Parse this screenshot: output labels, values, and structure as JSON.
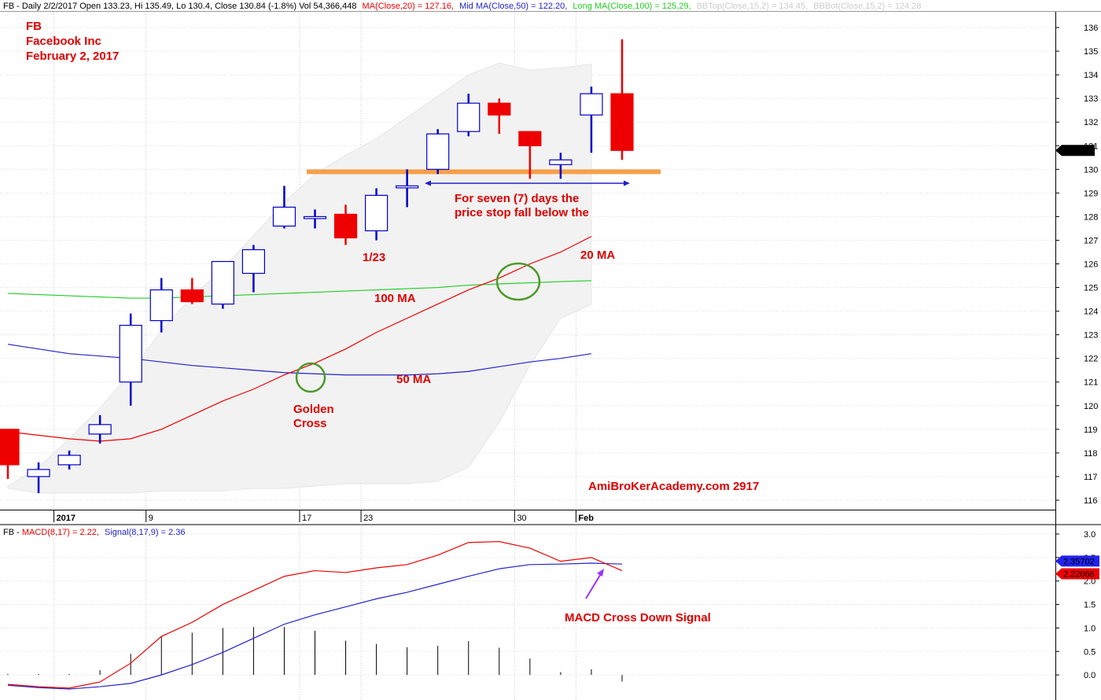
{
  "header": {
    "price_info": "FB - Daily 2/2/2017 Open 133.23, Hi 135.49, Lo 130.4, Close 130.84 (-1.8%) Vol 54,366,448",
    "ma20": "MA(Close,20) = 127.16,",
    "ma50": "Mid MA(Close,50) = 122.20,",
    "ma100": "Long MA(Close,100) = 125.29,",
    "bbtop": "BBTop(Close,15,2) = 134.45,",
    "bbbot": "BBBot(Close,15,2) = 124.28",
    "macd_prefix": "FB - ",
    "macd": "MACD(8,17) = 2.22,",
    "signal": "Signal(8,17,9) = 2.36"
  },
  "title": {
    "line1": "FB",
    "line2": "Facebook Inc",
    "line3": "February 2, 2017"
  },
  "annotations": {
    "seven_days_1": "For seven (7) days the",
    "seven_days_2": "price stop fall below the",
    "date_label": "1/23",
    "ma20_label": "20 MA",
    "ma100_label": "100 MA",
    "ma50_label": "50 MA",
    "golden_1": "Golden",
    "golden_2": "Cross",
    "watermark": "AmiBroKerAcademy.com  2917",
    "macd_cross": "MACD Cross Down Signal"
  },
  "colors": {
    "up_candle": "#0000cc",
    "down_candle": "#ee0000",
    "ma20": "#ee0000",
    "ma50": "#2222cc",
    "ma100": "#22cc22",
    "bollinger_band": "#f2f2f2",
    "support_line": "#f5a04a",
    "circle": "#4c9a2a",
    "macd": "#ee0000",
    "signal": "#2222cc"
  },
  "chart_data": [
    {
      "type": "candlestick",
      "ylim": [
        115.6,
        136.5
      ],
      "yticks": [
        116,
        117,
        118,
        119,
        120,
        121,
        122,
        123,
        124,
        125,
        126,
        127,
        128,
        129,
        130,
        131,
        132,
        133,
        134,
        135,
        136
      ],
      "x_tick_labels": [
        {
          "bar": 2,
          "label": "2017",
          "bold": true
        },
        {
          "bar": 5,
          "label": "9",
          "bold": false
        },
        {
          "bar": 10,
          "label": "17",
          "bold": false
        },
        {
          "bar": 12,
          "label": "23",
          "bold": false
        },
        {
          "bar": 17,
          "label": "30",
          "bold": false
        },
        {
          "bar": 19,
          "label": "Feb",
          "bold": true
        }
      ],
      "candles": [
        {
          "o": 119.0,
          "h": 119.0,
          "l": 116.9,
          "c": 117.5
        },
        {
          "o": 117.0,
          "h": 117.6,
          "l": 116.3,
          "c": 117.3
        },
        {
          "o": 117.5,
          "h": 118.1,
          "l": 117.3,
          "c": 117.9
        },
        {
          "o": 118.8,
          "h": 119.6,
          "l": 118.4,
          "c": 119.2
        },
        {
          "o": 121.0,
          "h": 123.9,
          "l": 120.0,
          "c": 123.4
        },
        {
          "o": 123.6,
          "h": 125.4,
          "l": 123.1,
          "c": 124.9
        },
        {
          "o": 124.9,
          "h": 125.4,
          "l": 124.3,
          "c": 124.4
        },
        {
          "o": 124.3,
          "h": 126.1,
          "l": 124.1,
          "c": 126.1
        },
        {
          "o": 125.6,
          "h": 126.8,
          "l": 124.8,
          "c": 126.6
        },
        {
          "o": 127.6,
          "h": 129.3,
          "l": 127.5,
          "c": 128.4
        },
        {
          "o": 128.0,
          "h": 128.3,
          "l": 127.5,
          "c": 128.0
        },
        {
          "o": 128.1,
          "h": 128.5,
          "l": 126.8,
          "c": 127.1
        },
        {
          "o": 127.4,
          "h": 129.2,
          "l": 127.0,
          "c": 128.9
        },
        {
          "o": 129.3,
          "h": 130.0,
          "l": 128.4,
          "c": 129.3
        },
        {
          "o": 130.0,
          "h": 131.7,
          "l": 129.8,
          "c": 131.5
        },
        {
          "o": 131.6,
          "h": 133.2,
          "l": 131.4,
          "c": 132.8
        },
        {
          "o": 132.8,
          "h": 133.0,
          "l": 131.5,
          "c": 132.3
        },
        {
          "o": 131.6,
          "h": 131.6,
          "l": 129.6,
          "c": 131.0
        },
        {
          "o": 130.2,
          "h": 130.7,
          "l": 129.6,
          "c": 130.4
        },
        {
          "o": 132.3,
          "h": 133.5,
          "l": 130.7,
          "c": 133.2
        },
        {
          "o": 133.2,
          "h": 135.5,
          "l": 130.4,
          "c": 130.8
        }
      ],
      "ma20": [
        118.9,
        118.75,
        118.6,
        118.5,
        118.6,
        119.0,
        119.6,
        120.2,
        120.7,
        121.3,
        121.8,
        122.4,
        123.1,
        123.7,
        124.3,
        124.9,
        125.4,
        126.0,
        126.5,
        127.16
      ],
      "ma50": [
        122.6,
        122.4,
        122.2,
        122.1,
        122.0,
        121.85,
        121.7,
        121.6,
        121.5,
        121.4,
        121.35,
        121.3,
        121.3,
        121.3,
        121.35,
        121.45,
        121.65,
        121.85,
        122.0,
        122.2
      ],
      "ma100": [
        124.75,
        124.7,
        124.65,
        124.6,
        124.55,
        124.55,
        124.6,
        124.65,
        124.7,
        124.75,
        124.8,
        124.85,
        124.9,
        124.95,
        125.0,
        125.1,
        125.15,
        125.2,
        125.25,
        125.29
      ],
      "bb_top": [
        116.6,
        117.4,
        118.6,
        119.9,
        121.4,
        123.2,
        124.6,
        125.8,
        127.2,
        128.6,
        129.8,
        130.6,
        131.3,
        132.2,
        133.1,
        134.0,
        134.5,
        134.2,
        134.3,
        134.45
      ],
      "bb_bot": [
        116.5,
        116.3,
        116.3,
        116.3,
        116.3,
        116.4,
        116.4,
        116.4,
        116.5,
        116.5,
        116.6,
        116.7,
        116.7,
        116.7,
        116.8,
        117.4,
        119.3,
        121.7,
        123.7,
        124.28
      ],
      "support_level": 129.9,
      "last_close_label": "130.84"
    },
    {
      "type": "line",
      "ylim": [
        -0.45,
        3.05
      ],
      "yticks": [
        0.0,
        0.5,
        1.0,
        1.5,
        2.0,
        2.5,
        3.0
      ],
      "macd": [
        -0.2,
        -0.25,
        -0.28,
        -0.15,
        0.25,
        0.82,
        1.12,
        1.5,
        1.8,
        2.1,
        2.22,
        2.18,
        2.28,
        2.35,
        2.55,
        2.82,
        2.84,
        2.7,
        2.42,
        2.5,
        2.22
      ],
      "signal": [
        -0.22,
        -0.27,
        -0.3,
        -0.25,
        -0.18,
        0.0,
        0.22,
        0.48,
        0.78,
        1.08,
        1.28,
        1.45,
        1.62,
        1.76,
        1.93,
        2.1,
        2.26,
        2.35,
        2.36,
        2.38,
        2.36
      ],
      "histogram": [
        0.02,
        0.02,
        0.02,
        0.1,
        0.45,
        0.82,
        0.9,
        1.0,
        1.02,
        1.02,
        0.94,
        0.73,
        0.66,
        0.59,
        0.62,
        0.72,
        0.58,
        0.35,
        0.06,
        0.12,
        -0.14
      ],
      "signal_label": "2.35702",
      "macd_label": "2.22066"
    }
  ]
}
